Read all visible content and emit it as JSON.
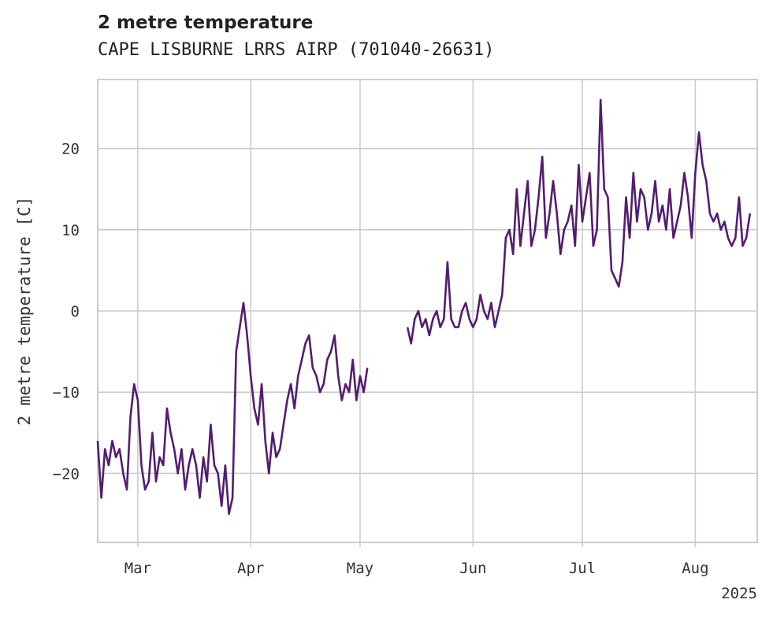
{
  "chart_data": {
    "type": "line",
    "title": "2 metre temperature",
    "subtitle": "CAPE LISBURNE LRRS AIRP (701040-26631)",
    "ylabel": "2 metre temperature [C]",
    "xlabel": "",
    "year_label": "2025",
    "x_ticks": [
      {
        "label": "Mar",
        "date": "2025-03-01"
      },
      {
        "label": "Apr",
        "date": "2025-04-01"
      },
      {
        "label": "May",
        "date": "2025-05-01"
      },
      {
        "label": "Jun",
        "date": "2025-06-01"
      },
      {
        "label": "Jul",
        "date": "2025-07-01"
      },
      {
        "label": "Aug",
        "date": "2025-08-01"
      }
    ],
    "y_ticks": [
      -20,
      -10,
      0,
      10,
      20
    ],
    "xlim": [
      "2025-02-18",
      "2025-08-18"
    ],
    "ylim": [
      -28.5,
      28.5
    ],
    "grid": true,
    "color": "#521d70",
    "segments": [
      {
        "x": [
          "2025-02-18",
          "2025-02-19",
          "2025-02-20",
          "2025-02-21",
          "2025-02-22",
          "2025-02-23",
          "2025-02-24",
          "2025-02-25",
          "2025-02-26",
          "2025-02-27",
          "2025-02-28",
          "2025-03-01",
          "2025-03-02",
          "2025-03-03",
          "2025-03-04",
          "2025-03-05",
          "2025-03-06",
          "2025-03-07",
          "2025-03-08",
          "2025-03-09",
          "2025-03-10",
          "2025-03-11",
          "2025-03-12",
          "2025-03-13",
          "2025-03-14",
          "2025-03-15",
          "2025-03-16",
          "2025-03-17",
          "2025-03-18",
          "2025-03-19",
          "2025-03-20",
          "2025-03-21",
          "2025-03-22",
          "2025-03-23",
          "2025-03-24",
          "2025-03-25",
          "2025-03-26",
          "2025-03-27",
          "2025-03-28",
          "2025-03-29",
          "2025-03-30",
          "2025-03-31",
          "2025-04-01",
          "2025-04-02",
          "2025-04-03",
          "2025-04-04",
          "2025-04-05",
          "2025-04-06",
          "2025-04-07",
          "2025-04-08",
          "2025-04-09",
          "2025-04-10",
          "2025-04-11",
          "2025-04-12",
          "2025-04-13",
          "2025-04-14",
          "2025-04-15",
          "2025-04-16",
          "2025-04-17",
          "2025-04-18",
          "2025-04-19",
          "2025-04-20",
          "2025-04-21",
          "2025-04-22",
          "2025-04-23",
          "2025-04-24",
          "2025-04-25",
          "2025-04-26",
          "2025-04-27",
          "2025-04-28",
          "2025-04-29",
          "2025-04-30",
          "2025-05-01",
          "2025-05-02",
          "2025-05-03"
        ],
        "y": [
          -16,
          -23,
          -17,
          -19,
          -16,
          -18,
          -17,
          -20,
          -22,
          -13,
          -9,
          -11,
          -19,
          -22,
          -21,
          -15,
          -21,
          -18,
          -19,
          -12,
          -15,
          -17,
          -20,
          -17,
          -22,
          -19,
          -17,
          -19,
          -23,
          -18,
          -21,
          -14,
          -19,
          -20,
          -24,
          -19,
          -25,
          -23,
          -5,
          -2,
          1,
          -3,
          -8,
          -12,
          -14,
          -9,
          -16,
          -20,
          -15,
          -18,
          -17,
          -14,
          -11,
          -9,
          -12,
          -8,
          -6,
          -4,
          -3,
          -7,
          -8,
          -10,
          -9,
          -6,
          -5,
          -3,
          -8,
          -11,
          -9,
          -10,
          -6,
          -11,
          -8,
          -10,
          -7
        ]
      },
      {
        "x": [
          "2025-05-14",
          "2025-05-15",
          "2025-05-16",
          "2025-05-17",
          "2025-05-18",
          "2025-05-19",
          "2025-05-20",
          "2025-05-21",
          "2025-05-22",
          "2025-05-23",
          "2025-05-24",
          "2025-05-25",
          "2025-05-26",
          "2025-05-27",
          "2025-05-28",
          "2025-05-29",
          "2025-05-30",
          "2025-05-31",
          "2025-06-01",
          "2025-06-02",
          "2025-06-03",
          "2025-06-04",
          "2025-06-05",
          "2025-06-06",
          "2025-06-07",
          "2025-06-08",
          "2025-06-09",
          "2025-06-10",
          "2025-06-11",
          "2025-06-12",
          "2025-06-13",
          "2025-06-14",
          "2025-06-15",
          "2025-06-16",
          "2025-06-17",
          "2025-06-18",
          "2025-06-19",
          "2025-06-20",
          "2025-06-21",
          "2025-06-22",
          "2025-06-23",
          "2025-06-24",
          "2025-06-25",
          "2025-06-26",
          "2025-06-27",
          "2025-06-28",
          "2025-06-29",
          "2025-06-30",
          "2025-07-01",
          "2025-07-02",
          "2025-07-03",
          "2025-07-04",
          "2025-07-05",
          "2025-07-06",
          "2025-07-07",
          "2025-07-08",
          "2025-07-09",
          "2025-07-10",
          "2025-07-11",
          "2025-07-12",
          "2025-07-13",
          "2025-07-14",
          "2025-07-15",
          "2025-07-16",
          "2025-07-17",
          "2025-07-18",
          "2025-07-19",
          "2025-07-20",
          "2025-07-21",
          "2025-07-22",
          "2025-07-23",
          "2025-07-24",
          "2025-07-25",
          "2025-07-26",
          "2025-07-27",
          "2025-07-28",
          "2025-07-29",
          "2025-07-30",
          "2025-07-31",
          "2025-08-01",
          "2025-08-02",
          "2025-08-03",
          "2025-08-04",
          "2025-08-05",
          "2025-08-06",
          "2025-08-07",
          "2025-08-08",
          "2025-08-09",
          "2025-08-10",
          "2025-08-11",
          "2025-08-12",
          "2025-08-13",
          "2025-08-14",
          "2025-08-15",
          "2025-08-16"
        ],
        "y": [
          -2,
          -4,
          -1,
          0,
          -2,
          -1,
          -3,
          -1,
          0,
          -2,
          -1,
          6,
          -1,
          -2,
          -2,
          0,
          1,
          -1,
          -2,
          -1,
          2,
          0,
          -1,
          1,
          -2,
          0,
          2,
          9,
          10,
          7,
          15,
          8,
          12,
          16,
          8,
          10,
          14,
          19,
          9,
          12,
          16,
          12,
          7,
          10,
          11,
          13,
          8,
          18,
          11,
          14,
          17,
          8,
          10,
          26,
          15,
          14,
          5,
          4,
          3,
          6,
          14,
          9,
          17,
          11,
          15,
          14,
          10,
          12,
          16,
          11,
          13,
          10,
          15,
          9,
          11,
          13,
          17,
          14,
          9,
          17,
          22,
          18,
          16,
          12,
          11,
          12,
          10,
          11,
          9,
          8,
          9,
          14,
          8,
          9,
          12
        ]
      }
    ]
  }
}
